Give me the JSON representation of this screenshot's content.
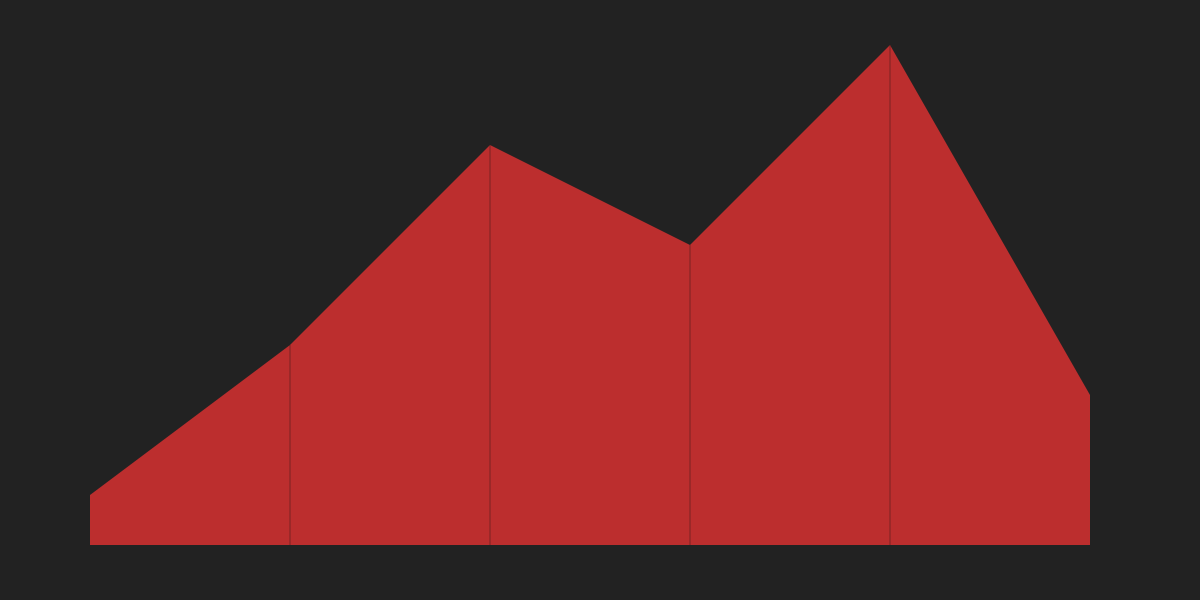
{
  "chart_data": {
    "type": "area",
    "x": [
      0,
      1,
      2,
      3,
      4,
      5
    ],
    "series": [
      {
        "values": [
          5,
          20,
          40,
          30,
          50,
          15
        ]
      }
    ],
    "ylim": [
      0,
      50
    ],
    "grid": false,
    "legend": "none"
  },
  "colors": {
    "background": "#222222",
    "fill": "#bc2e2e",
    "segment_divider": "#7a2323"
  }
}
